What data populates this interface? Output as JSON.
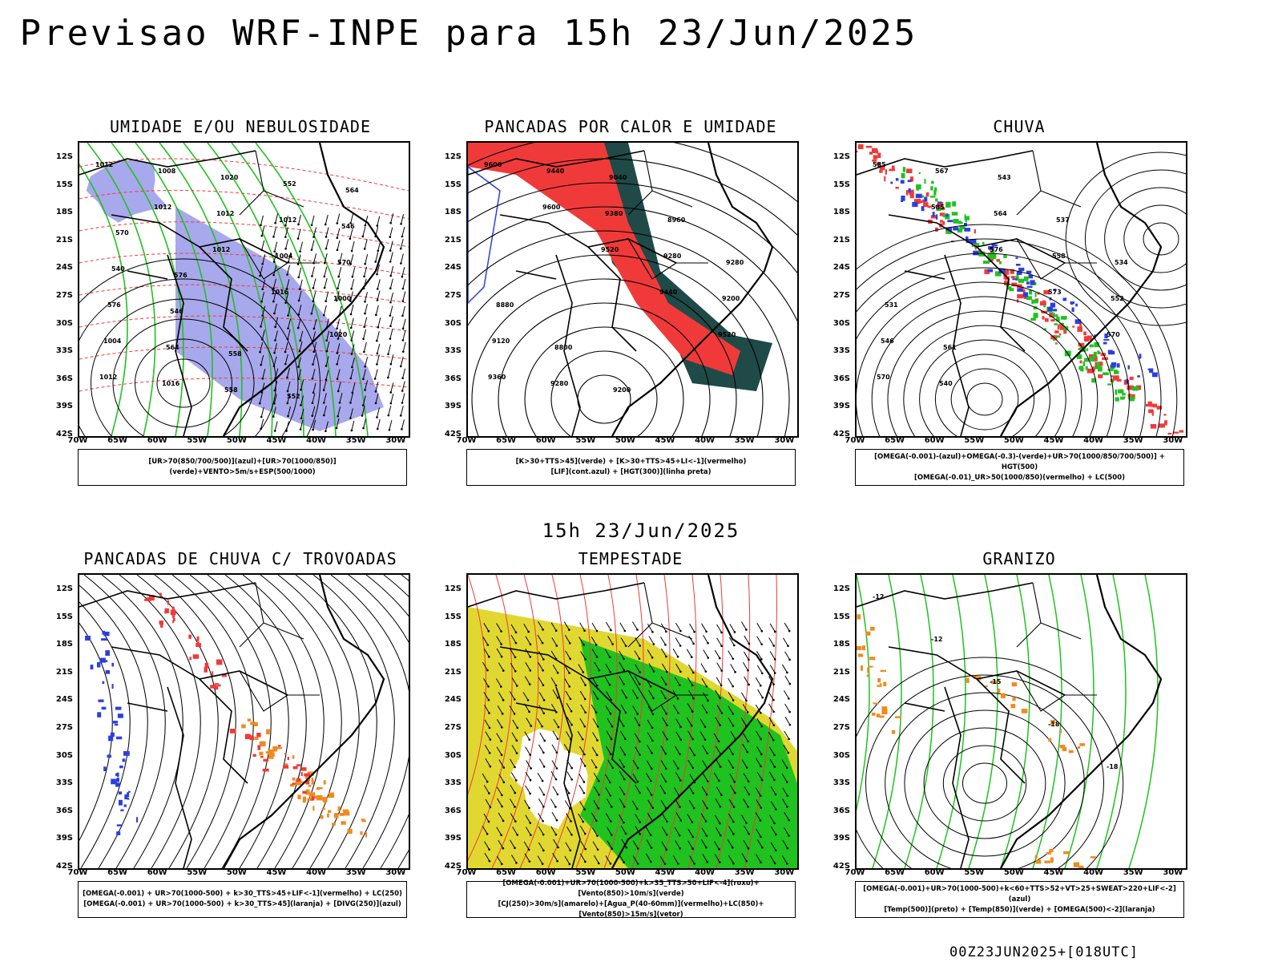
{
  "title": "Previsao WRF-INPE  para 15h 23/Jun/2025",
  "subtitle": "15h 23/Jun/2025",
  "footer": "00Z23JUN2025+[018UTC]",
  "lat_labels": [
    "12S",
    "15S",
    "18S",
    "21S",
    "24S",
    "27S",
    "30S",
    "33S",
    "36S",
    "39S",
    "42S"
  ],
  "lon_labels": [
    "70W",
    "65W",
    "60W",
    "55W",
    "50W",
    "45W",
    "40W",
    "35W",
    "30W"
  ],
  "panels": [
    {
      "title": "UMIDADE E/OU NEBULOSIDADE",
      "legend": [
        "[UR>70(850/700/500)](azul)+[UR>70(1000/850)](verde)+VENTO>5m/s+ESP(500/1000)"
      ],
      "labels": [
        "1012",
        "1012",
        "1012",
        "1016",
        "1020",
        "1012",
        "1008",
        "1012",
        "1004",
        "1000",
        "1004",
        "1016",
        "1020",
        "1012",
        "570",
        "576",
        "564",
        "558",
        "552",
        "546",
        "540",
        "546",
        "558",
        "552",
        "564",
        "570",
        "576"
      ]
    },
    {
      "title": "PANCADAS POR CALOR E UMIDADE",
      "legend": [
        "[K>30+TTS>45](verde) + [K>30+TTS>45+LI<-1](vermelho)",
        "[LIF](cont.azul) + [HGT(300)](linha preta)"
      ],
      "labels": [
        "9600",
        "9600",
        "9520",
        "9440",
        "9520",
        "9360",
        "9440",
        "9380",
        "9280",
        "9200",
        "9120",
        "9280",
        "9040",
        "8960",
        "9280",
        "8880",
        "8800",
        "9200"
      ]
    },
    {
      "title": "CHUVA",
      "legend": [
        "[OMEGA(-0.001)-(azul)+OMEGA(-0.3)-(verde)+UR>70(1000/850/700/500)] + HGT(500)",
        "[OMEGA(-0.01)_UR>50(1000/850)(vermelho) + LC(500)"
      ],
      "labels": [
        "585",
        "585",
        "576",
        "573",
        "570",
        "570",
        "567",
        "564",
        "558",
        "552",
        "546",
        "540",
        "543",
        "537",
        "534",
        "531",
        "561"
      ]
    },
    {
      "title": "PANCADAS DE CHUVA C/ TROVOADAS",
      "legend": [
        "[OMEGA(-0.001) + UR>70(1000-500) + k>30_TTS>45+LIF<-1](vermelho) + LC(250)",
        "[OMEGA(-0.001) + UR>70(1000-500) + k>30_TTS>45](laranja) + [DIVG(250)](azul)"
      ],
      "labels": []
    },
    {
      "title": "TEMPESTADE",
      "legend": [
        "[OMEGA(-0.001)+UR>70(1000-500)+k>35_TTS>50+LIF<-4](roxo)+[Vento(850)>10m/s](verde)",
        "[CJ(250)>30m/s](amarelo)+[Agua_P(40-60mm)](vermelho)+LC(850)+[Vento(850)>15m/s](vetor)"
      ],
      "labels": []
    },
    {
      "title": "GRANIZO",
      "legend": [
        "[OMEGA(-0.001)+UR>70(1000-500)+k<60+TTS>52+VT>25+SWEAT>220+LIF<-2](azul)",
        "[Temp(500)](preto) + [Temp(850)](verde) + [OMEGA(500)<-2](laranja)"
      ],
      "labels": [
        "-12",
        "-12",
        "-15",
        "-18",
        "-18"
      ]
    }
  ],
  "colors": {
    "blue": "#2b3fe0",
    "green": "#1fc21f",
    "red": "#f03a3a",
    "orange": "#f08a20",
    "yellow": "#e0d830",
    "darkteal": "#1f4a48",
    "lavender": "#a8a8ec",
    "black": "#000000"
  }
}
